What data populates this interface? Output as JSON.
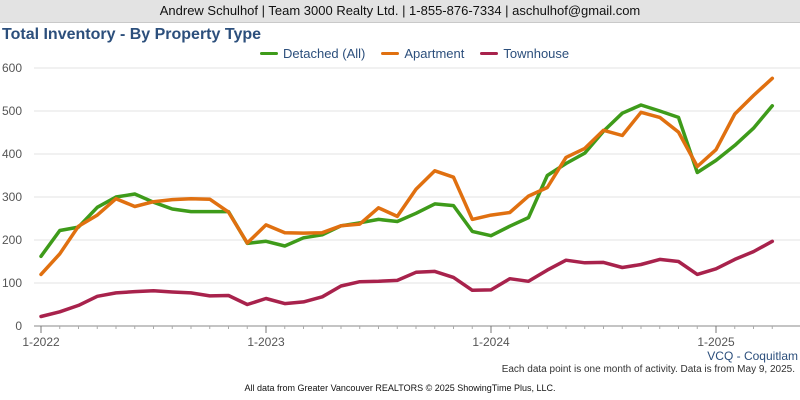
{
  "header": {
    "text": "Andrew Schulhof | Team 3000 Realty Ltd. | 1-855-876-7334 | aschulhof@gmail.com"
  },
  "region_label": "VCQ - Coquitlam",
  "note": "Each data point is one month of activity. Data is from May 9, 2025.",
  "footer": "All data from Greater Vancouver REALTORS © 2025 ShowingTime Plus, LLC.",
  "chart_data": {
    "type": "line",
    "title": "Total Inventory - By Property Type",
    "xlabel": "",
    "ylabel": "",
    "ylim": [
      0,
      600
    ],
    "y_ticks": [
      0,
      100,
      200,
      300,
      400,
      500,
      600
    ],
    "x_tick_labels": [
      "1-2022",
      "1-2023",
      "1-2024",
      "1-2025"
    ],
    "x": [
      "2022-01",
      "2022-02",
      "2022-03",
      "2022-04",
      "2022-05",
      "2022-06",
      "2022-07",
      "2022-08",
      "2022-09",
      "2022-10",
      "2022-11",
      "2022-12",
      "2023-01",
      "2023-02",
      "2023-03",
      "2023-04",
      "2023-05",
      "2023-06",
      "2023-07",
      "2023-08",
      "2023-09",
      "2023-10",
      "2023-11",
      "2023-12",
      "2024-01",
      "2024-02",
      "2024-03",
      "2024-04",
      "2024-05",
      "2024-06",
      "2024-07",
      "2024-08",
      "2024-09",
      "2024-10",
      "2024-11",
      "2024-12",
      "2025-01",
      "2025-02",
      "2025-03",
      "2025-04"
    ],
    "legend_position": "top",
    "grid": true,
    "series": [
      {
        "name": "Detached (All)",
        "color": "#3e9b1a",
        "values": [
          162,
          222,
          230,
          276,
          300,
          307,
          288,
          272,
          266,
          266,
          266,
          192,
          197,
          186,
          205,
          212,
          233,
          240,
          248,
          243,
          262,
          284,
          280,
          220,
          210,
          232,
          252,
          350,
          378,
          402,
          453,
          495,
          514,
          500,
          485,
          357,
          385,
          420,
          460,
          512
        ]
      },
      {
        "name": "Apartment",
        "color": "#e07010",
        "values": [
          120,
          168,
          232,
          258,
          296,
          278,
          289,
          294,
          296,
          295,
          265,
          193,
          235,
          217,
          216,
          217,
          233,
          237,
          275,
          255,
          318,
          361,
          346,
          248,
          258,
          264,
          302,
          322,
          392,
          413,
          455,
          443,
          497,
          485,
          451,
          371,
          410,
          493,
          536,
          576
        ]
      },
      {
        "name": "Townhouse",
        "color": "#a8224c",
        "values": [
          22,
          33,
          48,
          69,
          77,
          80,
          82,
          79,
          77,
          70,
          71,
          50,
          64,
          52,
          56,
          68,
          93,
          103,
          104,
          106,
          125,
          127,
          113,
          83,
          84,
          110,
          104,
          130,
          153,
          147,
          148,
          136,
          143,
          155,
          150,
          120,
          133,
          155,
          173,
          197
        ]
      }
    ]
  }
}
